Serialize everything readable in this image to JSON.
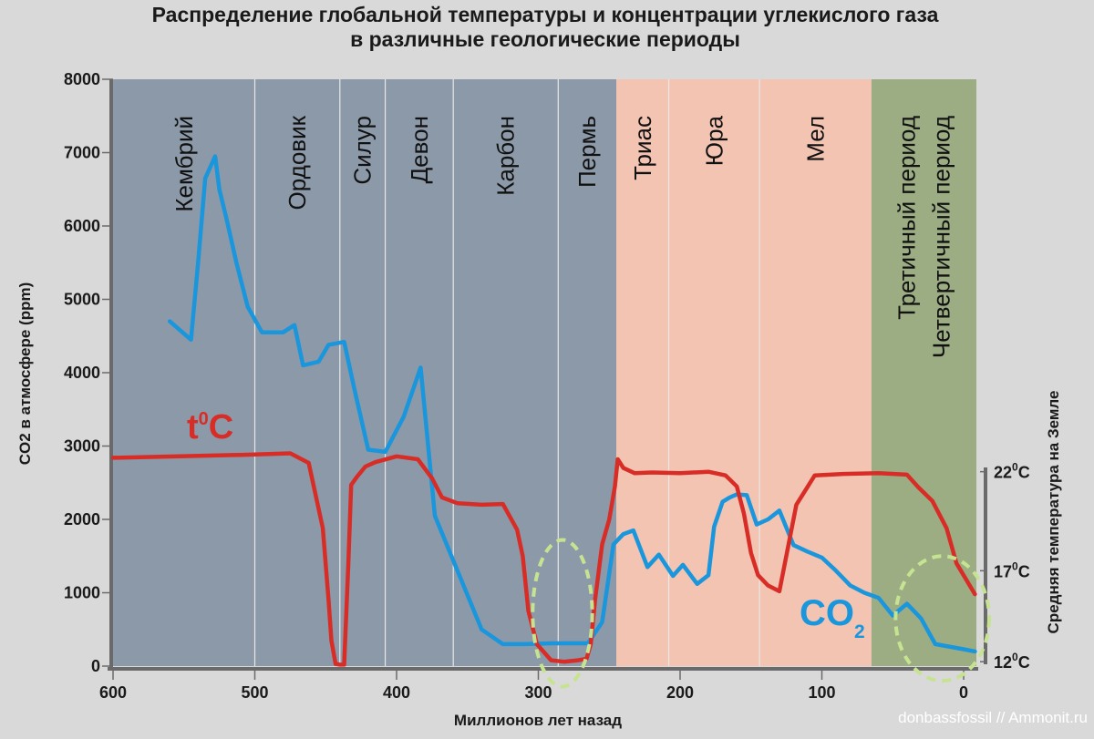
{
  "title_line1": "Распределение глобальной температуры и концентрации углекислого газа",
  "title_line2": "в различные геологические периоды",
  "watermark": "donbassfossil // Ammonit.ru",
  "colors": {
    "background": "#d9d9d9",
    "paleozoic": "#8c99a8",
    "mesozoic": "#f3c4b2",
    "cenozoic": "#9cad84",
    "co2_line": "#1a96dd",
    "temp_line": "#d82d27",
    "circle": "#c6e391",
    "divider": "#e8e8e8"
  },
  "chart_data": {
    "type": "line",
    "title": "Распределение глобальной температуры и концентрации углекислого газа в различные геологические периоды",
    "xlabel": "Миллионов лет назад",
    "ylabel": "CO2 в атмосфере (ppm)",
    "y2label": "Средняя температура на Земле",
    "xlim": [
      600,
      -10
    ],
    "ylim": [
      0,
      8000
    ],
    "x_ticks": [
      "600",
      "500",
      "400",
      "300",
      "200",
      "100",
      "0"
    ],
    "x_tick_values": [
      600,
      500,
      400,
      300,
      200,
      100,
      0
    ],
    "y_ticks": [
      "0",
      "1000",
      "2000",
      "3000",
      "4000",
      "5000",
      "6000",
      "7000",
      "8000"
    ],
    "y_tick_values": [
      0,
      1000,
      2000,
      3000,
      4000,
      5000,
      6000,
      7000,
      8000
    ],
    "y2_ticks": [
      {
        "base": "22",
        "sup": "0",
        "unit": "C",
        "y": 2650
      },
      {
        "base": "17",
        "sup": "0",
        "unit": "C",
        "y": 1300
      },
      {
        "base": "12",
        "sup": "0",
        "unit": "C",
        "y": 60
      }
    ],
    "y2_range": [
      60,
      2650
    ],
    "periods": [
      {
        "name": "Кембрий",
        "start": 600,
        "end": 500,
        "era": "paleozoic"
      },
      {
        "name": "Ордовик",
        "start": 500,
        "end": 440,
        "era": "paleozoic"
      },
      {
        "name": "Силур",
        "start": 440,
        "end": 408,
        "era": "paleozoic"
      },
      {
        "name": "Девон",
        "start": 408,
        "end": 360,
        "era": "paleozoic"
      },
      {
        "name": "Карбон",
        "start": 360,
        "end": 286,
        "era": "paleozoic"
      },
      {
        "name": "Пермь",
        "start": 286,
        "end": 245,
        "era": "paleozoic"
      },
      {
        "name": "Триас",
        "start": 245,
        "end": 208,
        "era": "mesozoic"
      },
      {
        "name": "Юра",
        "start": 208,
        "end": 144,
        "era": "mesozoic"
      },
      {
        "name": "Мел",
        "start": 144,
        "end": 65,
        "era": "mesozoic"
      },
      {
        "name": "Третичный период",
        "start": 65,
        "end": -10,
        "era": "cenozoic"
      },
      {
        "name": "Четвертичный период",
        "start": 65,
        "end": -10,
        "era": "cenozoic"
      }
    ],
    "series": [
      {
        "name": "CO",
        "name_sub": "2",
        "color": "#1a96dd",
        "x": [
          560,
          545,
          540,
          535,
          528,
          525,
          520,
          513,
          505,
          495,
          480,
          472,
          466,
          455,
          448,
          437,
          430,
          420,
          408,
          395,
          383,
          373,
          340,
          325,
          310,
          290,
          265,
          255,
          247,
          240,
          233,
          223,
          215,
          205,
          198,
          188,
          180,
          176,
          170,
          165,
          160,
          153,
          146,
          138,
          130,
          120,
          110,
          100,
          90,
          80,
          70,
          60,
          50,
          40,
          30,
          20,
          0,
          -8
        ],
        "y": [
          4700,
          4450,
          5500,
          6650,
          6950,
          6500,
          6100,
          5500,
          4900,
          4550,
          4550,
          4650,
          4100,
          4150,
          4380,
          4420,
          3800,
          2950,
          2920,
          3400,
          4070,
          2050,
          500,
          300,
          300,
          310,
          310,
          600,
          1660,
          1800,
          1850,
          1350,
          1520,
          1230,
          1380,
          1120,
          1240,
          1900,
          2240,
          2300,
          2340,
          2330,
          1930,
          2000,
          2120,
          1650,
          1560,
          1480,
          1300,
          1100,
          1000,
          930,
          690,
          850,
          650,
          300,
          230,
          200
        ]
      },
      {
        "name": "t",
        "name_sup": "0",
        "name_unit": "C",
        "color": "#d82d27",
        "x": [
          600,
          510,
          475,
          462,
          452,
          448,
          446,
          443,
          440,
          437,
          434,
          432,
          428,
          422,
          415,
          400,
          385,
          375,
          368,
          357,
          340,
          325,
          315,
          311,
          307,
          301,
          291,
          282,
          272,
          266,
          263,
          260,
          255,
          250,
          246,
          244,
          240,
          232,
          220,
          200,
          180,
          168,
          160,
          155,
          150,
          145,
          138,
          130,
          118,
          105,
          85,
          60,
          40,
          32,
          22,
          12,
          5,
          -8
        ],
        "y": [
          2840,
          2880,
          2900,
          2770,
          1880,
          900,
          350,
          30,
          20,
          20,
          1400,
          2470,
          2580,
          2720,
          2780,
          2860,
          2820,
          2560,
          2300,
          2220,
          2200,
          2210,
          1860,
          1500,
          750,
          300,
          80,
          60,
          80,
          100,
          300,
          900,
          1660,
          2000,
          2450,
          2820,
          2700,
          2630,
          2640,
          2630,
          2650,
          2600,
          2450,
          2080,
          1540,
          1240,
          1100,
          1020,
          2200,
          2600,
          2620,
          2630,
          2610,
          2440,
          2250,
          1880,
          1400,
          980
        ]
      }
    ],
    "annotations": [
      {
        "type": "dashed-ellipse",
        "x": 283,
        "y": 720,
        "rx": 21,
        "ry": 1000
      },
      {
        "type": "dashed-ellipse",
        "x": 15,
        "y": 650,
        "rx": 33,
        "ry": 850
      }
    ],
    "grid": false,
    "legend": "inline labels"
  }
}
